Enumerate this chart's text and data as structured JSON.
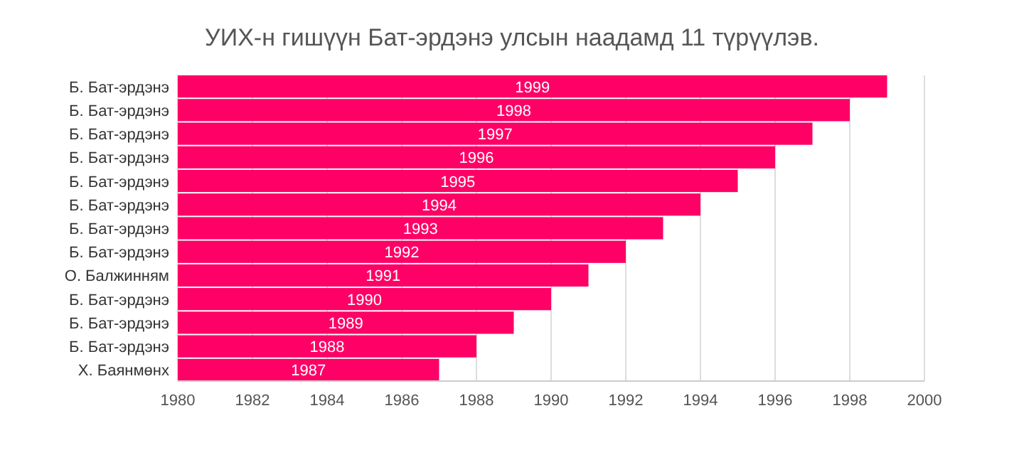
{
  "chart_data": {
    "type": "bar",
    "orientation": "horizontal",
    "title": "УИХ-н гишүүн Бат-эрдэнэ улсын наадамд 11 түрүүлэв.",
    "categories": [
      "Б. Бат-эрдэнэ",
      "Б. Бат-эрдэнэ",
      "Б. Бат-эрдэнэ",
      "Б. Бат-эрдэнэ",
      "Б. Бат-эрдэнэ",
      "Б. Бат-эрдэнэ",
      "Б. Бат-эрдэнэ",
      "Б. Бат-эрдэнэ",
      "О. Балжинням",
      "Б. Бат-эрдэнэ",
      "Б. Бат-эрдэнэ",
      "Б. Бат-эрдэнэ",
      "Х. Баянмөнх"
    ],
    "values": [
      1999,
      1998,
      1997,
      1996,
      1995,
      1994,
      1993,
      1992,
      1991,
      1990,
      1989,
      1988,
      1987
    ],
    "color": "#ff0066",
    "xlim": [
      1980,
      2000
    ],
    "xticks": [
      1980,
      1982,
      1984,
      1986,
      1988,
      1990,
      1992,
      1994,
      1996,
      1998,
      2000
    ],
    "grid": "x",
    "data_labels": true
  }
}
